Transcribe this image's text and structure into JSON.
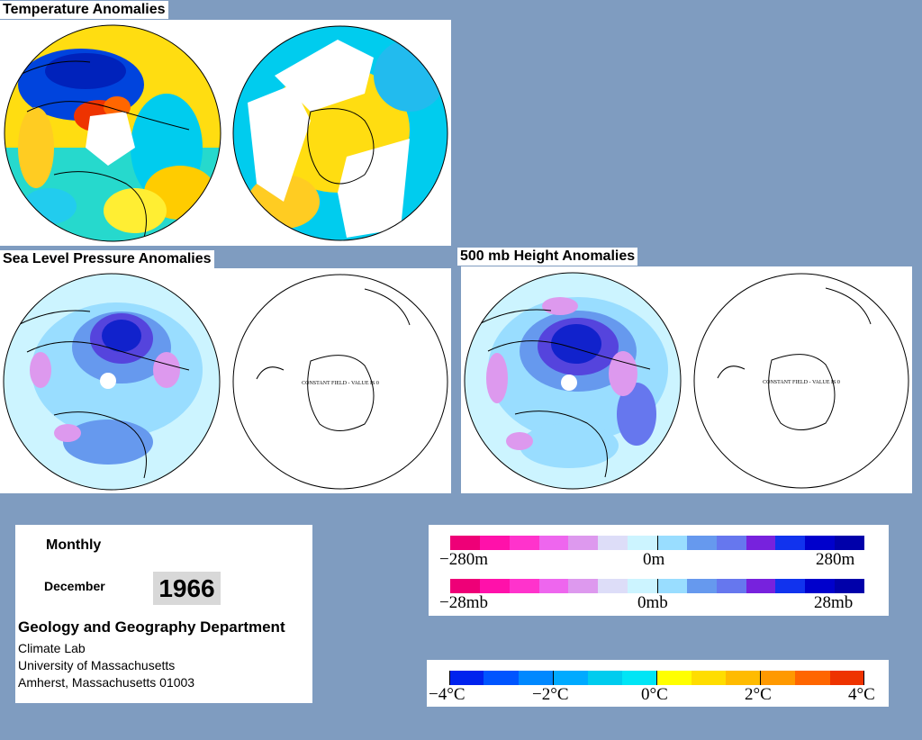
{
  "titles": {
    "temperature": "Temperature Anomalies",
    "slp": "Sea Level Pressure Anomalies",
    "height500": "500 mb Height Anomalies"
  },
  "constant_field_text": "CONSTANT FIELD - VALUE IS 0",
  "info": {
    "period": "Monthly",
    "month": "December",
    "year": "1966",
    "department": "Geology and Geography Department",
    "lab": "Climate Lab",
    "university": "University of Massachusetts",
    "address": "Amherst, Massachusetts 01003"
  },
  "legend_anomaly": {
    "colors": [
      "#ee0077",
      "#ff11aa",
      "#ff33cc",
      "#ee66ee",
      "#dd99ee",
      "#ddddf8",
      "#ccf4ff",
      "#99ddff",
      "#6699ee",
      "#6677ee",
      "#7722dd",
      "#1133ee",
      "#0000cc",
      "#0000aa"
    ],
    "height_labels": [
      "−280m",
      "0m",
      "280m"
    ],
    "pressure_labels": [
      "−28mb",
      "0mb",
      "28mb"
    ]
  },
  "legend_temperature": {
    "colors": [
      "#0022ee",
      "#0055ff",
      "#0088ff",
      "#00aaff",
      "#00ccee",
      "#00e5f5",
      "#ffff00",
      "#ffdd00",
      "#ffbb00",
      "#ff9900",
      "#ff6600",
      "#ee3300"
    ],
    "labels": [
      "−4°C",
      "−2°C",
      "0°C",
      "2°C",
      "4°C"
    ]
  }
}
